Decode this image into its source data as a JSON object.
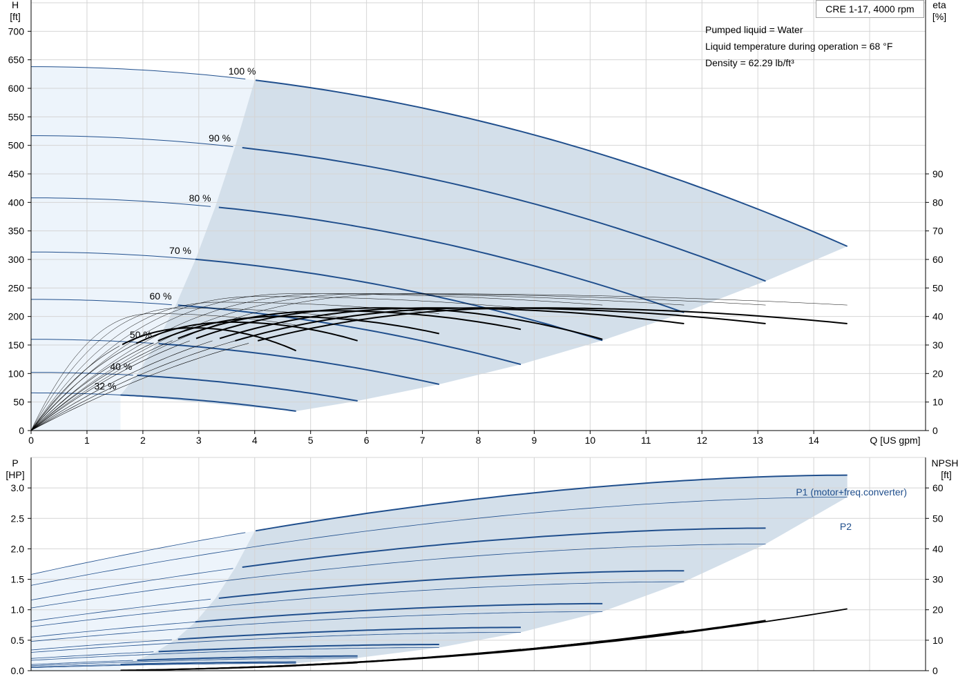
{
  "model_label": "CRE 1-17, 4000 rpm",
  "info_lines": [
    "Pumped liquid = Water",
    "Liquid temperature during operation = 68 °F",
    "Density = 62.29 lb/ft³"
  ],
  "colors": {
    "curve_blue": "#1f4e8c",
    "area_dark": "#d3dfea",
    "area_light": "#edf4fb",
    "grid": "#d4d4d4",
    "eta_black": "#000000"
  },
  "chart_data": [
    {
      "type": "line",
      "name": "head",
      "xlabel": "Q [US gpm]",
      "ylabel_top": "H",
      "ylabel_unit": "[ft]",
      "y2label_top": "eta",
      "y2label_unit": "[%]",
      "xlim": [
        0,
        16
      ],
      "ylim": [
        0,
        750
      ],
      "y2lim": [
        0,
        150
      ],
      "x_ticks": [
        0,
        1,
        2,
        3,
        4,
        5,
        6,
        7,
        8,
        9,
        10,
        11,
        12,
        13,
        14
      ],
      "y_ticks": [
        0,
        50,
        100,
        150,
        200,
        250,
        300,
        350,
        400,
        450,
        500,
        550,
        600,
        650,
        700
      ],
      "y2_ticks": [
        0,
        10,
        20,
        30,
        40,
        50,
        60,
        70,
        80,
        90
      ],
      "grid": true,
      "speed_labels": [
        "100 %",
        "90 %",
        "80 %",
        "70 %",
        "60 %",
        "50 %",
        "40 %",
        "32 %"
      ],
      "head_curves": [
        {
          "speed": 100,
          "shutoff": 638,
          "qmax": 14.6,
          "hend": 323
        },
        {
          "speed": 90,
          "shutoff": 517,
          "qmax": 13.14,
          "hend": 262
        },
        {
          "speed": 80,
          "shutoff": 408,
          "qmax": 11.68,
          "hend": 207
        },
        {
          "speed": 70,
          "shutoff": 313,
          "qmax": 10.22,
          "hend": 158
        },
        {
          "speed": 60,
          "shutoff": 230,
          "qmax": 8.76,
          "hend": 116
        },
        {
          "speed": 50,
          "shutoff": 160,
          "qmax": 7.3,
          "hend": 81
        },
        {
          "speed": 40,
          "shutoff": 102,
          "qmax": 5.84,
          "hend": 52
        },
        {
          "speed": 32,
          "shutoff": 66,
          "qmax": 4.74,
          "hend": 34
        }
      ],
      "efficiency_curves": [
        {
          "speed": 100,
          "qmax": 14.6,
          "peak": 43,
          "q_peak": 9.0,
          "eta_end": 37.5
        },
        {
          "speed": 90,
          "qmax": 13.14,
          "peak": 43,
          "q_peak": 8.1,
          "eta_end": 37.5
        },
        {
          "speed": 80,
          "qmax": 11.68,
          "peak": 43,
          "q_peak": 7.2,
          "eta_end": 37.5
        },
        {
          "speed": 70,
          "qmax": 10.22,
          "peak": 43,
          "q_peak": 6.3,
          "eta_end": 32
        },
        {
          "speed": 60,
          "qmax": 8.76,
          "peak": 42,
          "q_peak": 5.4,
          "eta_end": 35.5
        },
        {
          "speed": 50,
          "qmax": 7.3,
          "peak": 40,
          "q_peak": 4.5,
          "eta_end": 34
        },
        {
          "speed": 40,
          "qmax": 5.84,
          "peak": 38,
          "q_peak": 3.6,
          "eta_end": 31.5
        },
        {
          "speed": 32,
          "qmax": 4.74,
          "peak": 36,
          "q_peak": 2.9,
          "eta_end": 28
        }
      ]
    },
    {
      "type": "line",
      "name": "power",
      "xlabel": "",
      "ylabel_top": "P",
      "ylabel_unit": "[HP]",
      "y2label_top": "NPSH",
      "y2label_unit": "[ft]",
      "xlim": [
        0,
        16
      ],
      "ylim": [
        0,
        3.5
      ],
      "y2lim": [
        0,
        70
      ],
      "y_ticks": [
        0.0,
        0.5,
        1.0,
        1.5,
        2.0,
        2.5,
        3.0
      ],
      "y_tick_labels": [
        "0.0",
        "0.5",
        "1.0",
        "1.5",
        "2.0",
        "2.5",
        "3.0"
      ],
      "y2_ticks": [
        0,
        10,
        20,
        30,
        40,
        50,
        60
      ],
      "grid": true,
      "series_labels": [
        "P1 (motor+freq.converter)",
        "P2"
      ],
      "p1_curves": [
        {
          "speed": 100,
          "p0": 1.58,
          "pmax": 3.21,
          "qmax": 14.6
        },
        {
          "speed": 90,
          "p0": 1.16,
          "pmax": 2.34,
          "qmax": 13.14
        },
        {
          "speed": 80,
          "p0": 0.81,
          "pmax": 1.64,
          "qmax": 11.68
        },
        {
          "speed": 70,
          "p0": 0.55,
          "pmax": 1.1,
          "qmax": 10.22
        },
        {
          "speed": 60,
          "p0": 0.34,
          "pmax": 0.71,
          "qmax": 8.76
        },
        {
          "speed": 50,
          "p0": 0.2,
          "pmax": 0.43,
          "qmax": 7.3
        },
        {
          "speed": 40,
          "p0": 0.1,
          "pmax": 0.24,
          "qmax": 5.84
        },
        {
          "speed": 32,
          "p0": 0.06,
          "pmax": 0.14,
          "qmax": 4.74
        }
      ],
      "p2_curves": [
        {
          "speed": 100,
          "p0": 1.4,
          "pmax": 2.85,
          "qmax": 14.6
        },
        {
          "speed": 90,
          "p0": 1.03,
          "pmax": 2.08,
          "qmax": 13.14
        },
        {
          "speed": 80,
          "p0": 0.72,
          "pmax": 1.46,
          "qmax": 11.68
        },
        {
          "speed": 70,
          "p0": 0.48,
          "pmax": 0.97,
          "qmax": 10.22
        },
        {
          "speed": 60,
          "p0": 0.3,
          "pmax": 0.63,
          "qmax": 8.76
        },
        {
          "speed": 50,
          "p0": 0.17,
          "pmax": 0.38,
          "qmax": 7.3
        },
        {
          "speed": 40,
          "p0": 0.08,
          "pmax": 0.21,
          "qmax": 5.84
        },
        {
          "speed": 32,
          "p0": 0.05,
          "pmax": 0.12,
          "qmax": 4.74
        }
      ],
      "npsh_curves": [
        {
          "speed": 100,
          "qmax": 14.6,
          "npsh_end": 20.3
        },
        {
          "speed": 90,
          "qmax": 13.14,
          "npsh_end": 16.5
        },
        {
          "speed": 80,
          "qmax": 11.68,
          "npsh_end": 13
        },
        {
          "speed": 70,
          "qmax": 10.22,
          "npsh_end": 9.7
        },
        {
          "speed": 60,
          "qmax": 8.76,
          "npsh_end": 7
        },
        {
          "speed": 50,
          "qmax": 7.3,
          "npsh_end": 4.5
        },
        {
          "speed": 40,
          "qmax": 5.84,
          "npsh_end": 2.6
        },
        {
          "speed": 32,
          "qmax": 4.74,
          "npsh_end": 1.6
        }
      ]
    }
  ]
}
